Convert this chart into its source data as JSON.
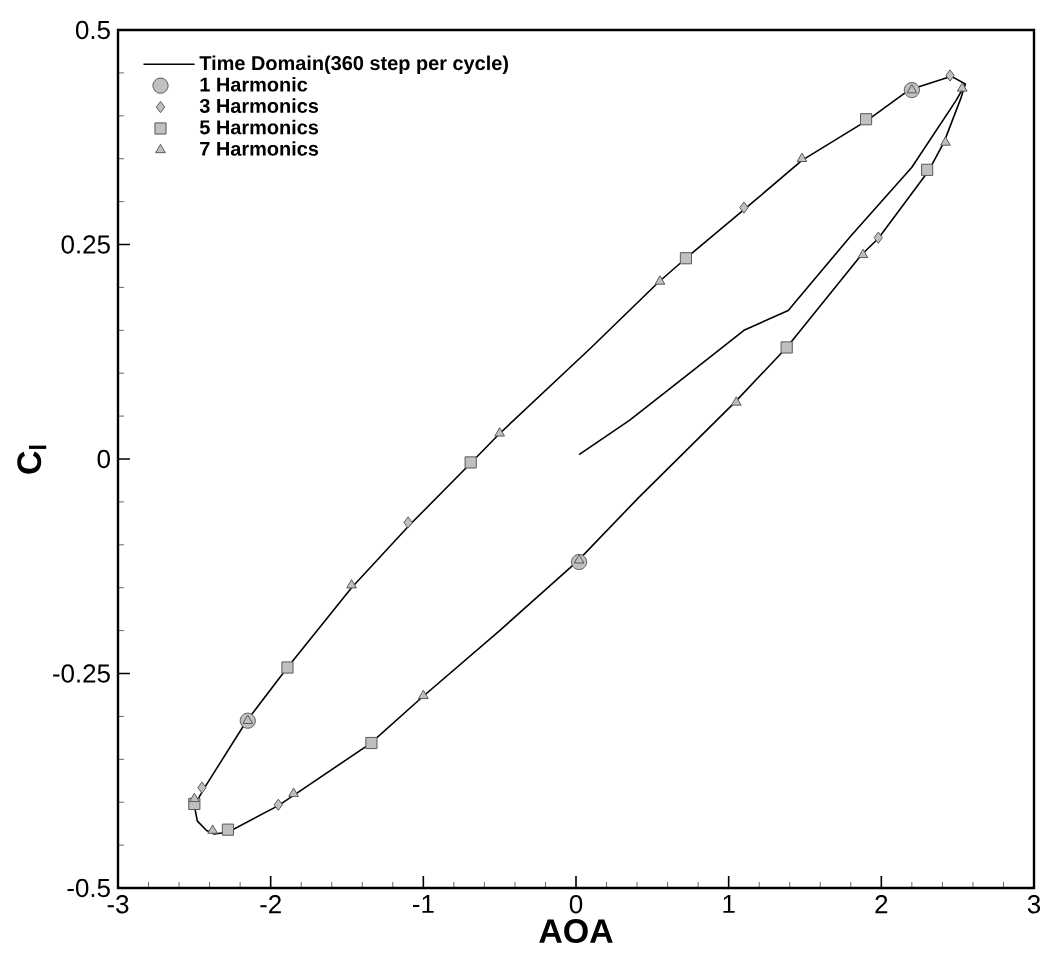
{
  "chart_data": {
    "type": "line",
    "xlabel": "AOA",
    "ylabel": "C$_{l}$",
    "xlim": [
      -3,
      3
    ],
    "ylim": [
      -0.5,
      0.5
    ],
    "xticks": [
      -3,
      -2,
      -1,
      0,
      1,
      2,
      3
    ],
    "yticks": [
      -0.5,
      -0.25,
      0,
      0.25,
      0.5
    ],
    "legend": "top left",
    "grid": false,
    "series": [
      {
        "name": "Time Domain(360 step per cycle)",
        "color": "#000000",
        "marker": "none",
        "x": [
          0.02,
          0.35,
          0.73,
          1.1,
          1.39,
          1.8,
          2.2,
          2.49,
          2.55,
          2.46,
          2.18,
          1.91,
          1.48,
          1.11,
          0.72,
          0.54,
          0.1,
          -0.51,
          -0.69,
          -1.09,
          -1.47,
          -1.89,
          -2.16,
          -2.44,
          -2.5,
          -2.48,
          -2.42,
          -2.37,
          -2.28,
          -1.95,
          -1.85,
          -1.35,
          -1.01,
          -0.5,
          0.01,
          0.41,
          1.04,
          1.38,
          1.87,
          1.98,
          2.31,
          2.41,
          2.52,
          2.55
        ],
        "values": [
          0.005,
          0.045,
          0.098,
          0.15,
          0.173,
          0.26,
          0.34,
          0.418,
          0.437,
          0.446,
          0.43,
          0.395,
          0.348,
          0.292,
          0.234,
          0.206,
          0.13,
          0.028,
          -0.005,
          -0.077,
          -0.15,
          -0.243,
          -0.306,
          -0.385,
          -0.404,
          -0.422,
          -0.433,
          -0.437,
          -0.435,
          -0.404,
          -0.392,
          -0.332,
          -0.278,
          -0.2,
          -0.119,
          -0.045,
          0.066,
          0.13,
          0.238,
          0.257,
          0.336,
          0.369,
          0.42,
          0.437
        ]
      },
      {
        "name": "1 Harmonic",
        "type": "scatter",
        "color": "#c0c0c0",
        "marker": "circle",
        "x": [
          2.2,
          -2.15,
          0.02
        ],
        "values": [
          0.43,
          -0.305,
          -0.12
        ]
      },
      {
        "name": "3 Harmonics",
        "type": "scatter",
        "color": "#c0c0c0",
        "marker": "diamond",
        "x": [
          2.45,
          1.1,
          -1.1,
          -2.45,
          -1.95,
          1.98
        ],
        "values": [
          0.447,
          0.293,
          -0.074,
          -0.383,
          -0.403,
          0.258
        ]
      },
      {
        "name": "5 Harmonics",
        "type": "scatter",
        "color": "#c0c0c0",
        "marker": "square",
        "x": [
          1.9,
          0.72,
          -0.69,
          -1.89,
          -2.5,
          -2.28,
          -1.34,
          1.38,
          2.3
        ],
        "values": [
          0.396,
          0.234,
          -0.004,
          -0.243,
          -0.402,
          -0.432,
          -0.331,
          0.13,
          0.337
        ]
      },
      {
        "name": "7 Harmonics",
        "type": "scatter",
        "color": "#c0c0c0",
        "marker": "triangle",
        "x": [
          2.2,
          2.53,
          1.48,
          0.55,
          -0.5,
          -1.47,
          -2.15,
          -2.5,
          -2.38,
          -1.85,
          -1.0,
          0.02,
          1.05,
          1.88,
          2.42
        ],
        "values": [
          0.43,
          0.432,
          0.35,
          0.207,
          0.03,
          -0.147,
          -0.305,
          -0.396,
          -0.433,
          -0.39,
          -0.276,
          -0.118,
          0.066,
          0.238,
          0.369
        ]
      }
    ]
  }
}
